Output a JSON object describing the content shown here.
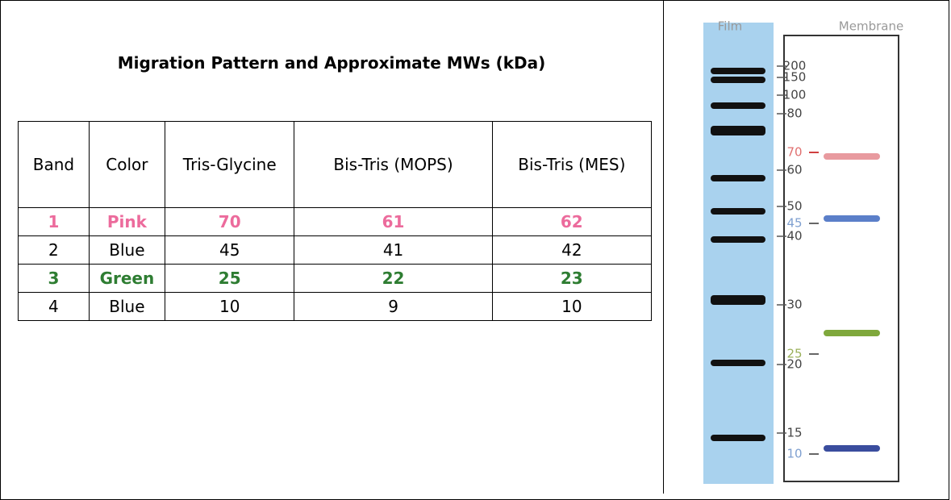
{
  "title": "Migration Pattern and Approximate MWs (kDa)",
  "table": {
    "header": [
      "Band",
      "Color",
      "Tris-Glycine",
      "Bis-Tris (MOPS)",
      "Bis-Tris (MES)"
    ],
    "rows": [
      [
        "1",
        "Pink",
        "70",
        "61",
        "62"
      ],
      [
        "2",
        "Blue",
        "45",
        "41",
        "42"
      ],
      [
        "3",
        "Green",
        "25",
        "22",
        "23"
      ],
      [
        "4",
        "Blue",
        "10",
        "9",
        "10"
      ]
    ]
  },
  "blot": {
    "lanes": [
      "Film",
      "Membrane"
    ],
    "markers": [
      "200",
      "150",
      "100",
      "80",
      "70",
      "60",
      "50",
      "45",
      "40",
      "30",
      "25",
      "20",
      "15",
      "10"
    ]
  }
}
